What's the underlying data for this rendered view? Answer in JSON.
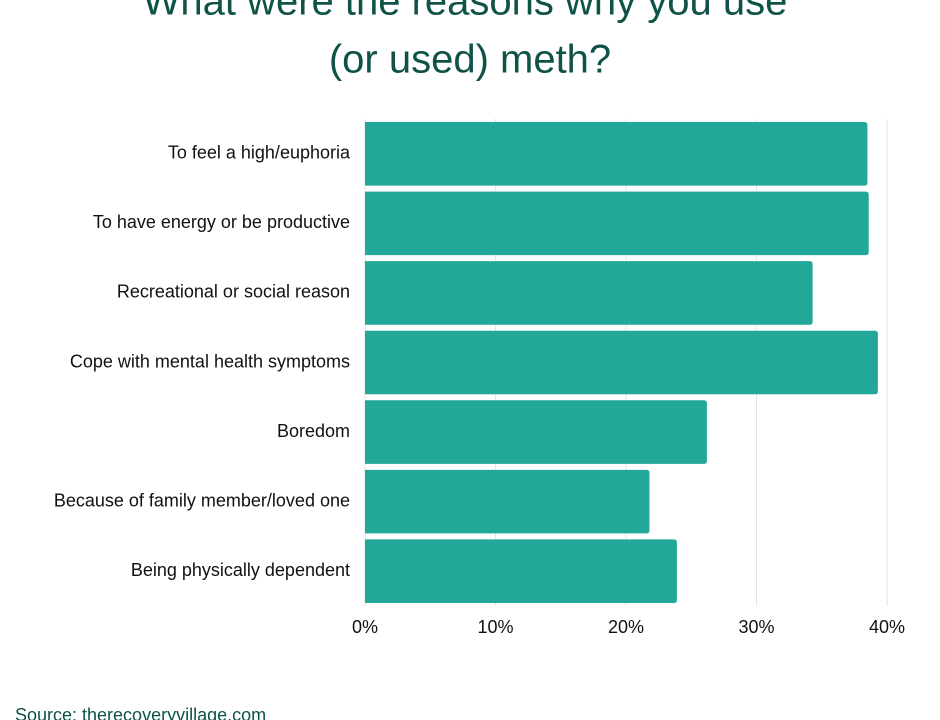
{
  "chart_data": {
    "type": "bar",
    "orientation": "horizontal",
    "title": [
      "What were the reasons why you use",
      "(or used) meth?"
    ],
    "categories": [
      "To feel a high/euphoria",
      "To have energy or be productive",
      "Recreational or social reason",
      "Cope with mental health symptoms",
      "Boredom",
      "Because of family member/loved one",
      "Being physically dependent"
    ],
    "values": [
      38.5,
      38.6,
      34.3,
      39.3,
      26.2,
      21.8,
      23.9
    ],
    "color": "#21a899",
    "xlim": [
      0,
      40
    ],
    "xticks": [
      {
        "value": 0,
        "label": "0%"
      },
      {
        "value": 10,
        "label": "10%"
      },
      {
        "value": 20,
        "label": "20%"
      },
      {
        "value": 30,
        "label": "30%"
      },
      {
        "value": 40,
        "label": "40%"
      }
    ],
    "grid": true,
    "source": "Source: therecoveryvillage.com"
  }
}
